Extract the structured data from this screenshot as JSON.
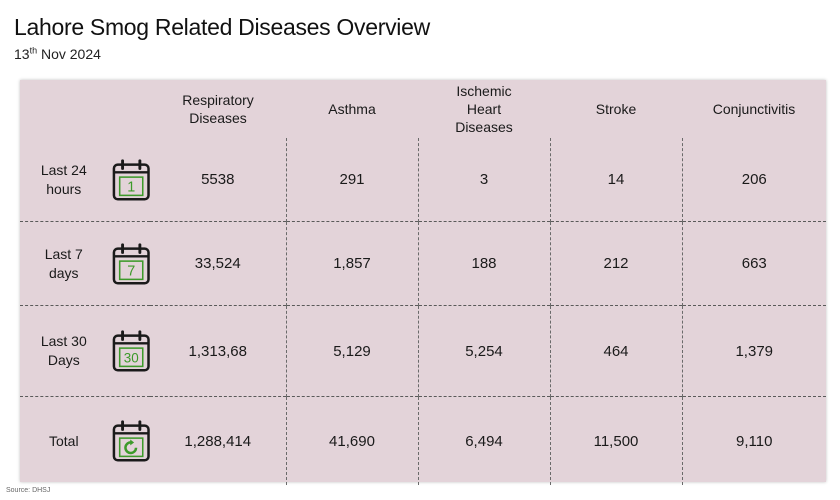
{
  "title": "Lahore Smog Related Diseases Overview",
  "date": {
    "day": "13",
    "suffix": "th",
    "rest": " Nov 2024"
  },
  "source": "Source: DHSJ",
  "colors": {
    "panel": "#e3d3d9",
    "icon_green": "#3d9a2a",
    "icon_dark": "#1a1a1a"
  },
  "chart_data": {
    "type": "table",
    "columns": [
      "Respiratory Diseases",
      "Asthma",
      "Ischemic Heart Diseases",
      "Stroke",
      "Conjunctivitis"
    ],
    "rows": [
      {
        "label": "Last 24 hours",
        "icon": "calendar-1-icon",
        "icon_text": "1",
        "values": [
          "5538",
          "291",
          "3",
          "14",
          "206"
        ]
      },
      {
        "label": "Last 7 days",
        "icon": "calendar-7-icon",
        "icon_text": "7",
        "values": [
          "33,524",
          "1,857",
          "188",
          "212",
          "663"
        ]
      },
      {
        "label": "Last 30 Days",
        "icon": "calendar-30-icon",
        "icon_text": "30",
        "values": [
          "1,313,68",
          "5,129",
          "5,254",
          "464",
          "1,379"
        ]
      },
      {
        "label": "Total",
        "icon": "calendar-refresh-icon",
        "icon_text": "",
        "values": [
          "1,288,414",
          "41,690",
          "6,494",
          "11,500",
          "9,110"
        ]
      }
    ]
  }
}
